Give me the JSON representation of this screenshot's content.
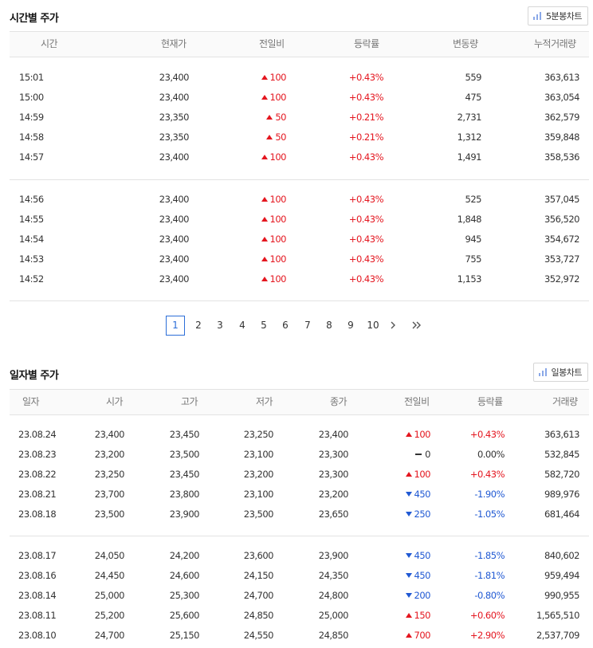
{
  "hourly": {
    "title": "시간별 주가",
    "chart_button": "5분봉차트",
    "headers": [
      "시간",
      "현재가",
      "전일비",
      "등락률",
      "변동량",
      "누적거래량"
    ],
    "group1": [
      {
        "time": "15:01",
        "price": "23,400",
        "diff": "100",
        "dir": "up",
        "rate": "+0.43%",
        "vol": "559",
        "cum": "363,613"
      },
      {
        "time": "15:00",
        "price": "23,400",
        "diff": "100",
        "dir": "up",
        "rate": "+0.43%",
        "vol": "475",
        "cum": "363,054"
      },
      {
        "time": "14:59",
        "price": "23,350",
        "diff": "50",
        "dir": "up",
        "rate": "+0.21%",
        "vol": "2,731",
        "cum": "362,579"
      },
      {
        "time": "14:58",
        "price": "23,350",
        "diff": "50",
        "dir": "up",
        "rate": "+0.21%",
        "vol": "1,312",
        "cum": "359,848"
      },
      {
        "time": "14:57",
        "price": "23,400",
        "diff": "100",
        "dir": "up",
        "rate": "+0.43%",
        "vol": "1,491",
        "cum": "358,536"
      }
    ],
    "group2": [
      {
        "time": "14:56",
        "price": "23,400",
        "diff": "100",
        "dir": "up",
        "rate": "+0.43%",
        "vol": "525",
        "cum": "357,045"
      },
      {
        "time": "14:55",
        "price": "23,400",
        "diff": "100",
        "dir": "up",
        "rate": "+0.43%",
        "vol": "1,848",
        "cum": "356,520"
      },
      {
        "time": "14:54",
        "price": "23,400",
        "diff": "100",
        "dir": "up",
        "rate": "+0.43%",
        "vol": "945",
        "cum": "354,672"
      },
      {
        "time": "14:53",
        "price": "23,400",
        "diff": "100",
        "dir": "up",
        "rate": "+0.43%",
        "vol": "755",
        "cum": "353,727"
      },
      {
        "time": "14:52",
        "price": "23,400",
        "diff": "100",
        "dir": "up",
        "rate": "+0.43%",
        "vol": "1,153",
        "cum": "352,972"
      }
    ]
  },
  "pagination": {
    "pages": [
      "1",
      "2",
      "3",
      "4",
      "5",
      "6",
      "7",
      "8",
      "9",
      "10"
    ],
    "current": "1"
  },
  "daily": {
    "title": "일자별 주가",
    "chart_button": "일봉차트",
    "headers": [
      "일자",
      "시가",
      "고가",
      "저가",
      "종가",
      "전일비",
      "등락률",
      "거래량"
    ],
    "group1": [
      {
        "date": "23.08.24",
        "open": "23,400",
        "high": "23,450",
        "low": "23,250",
        "close": "23,400",
        "diff": "100",
        "dir": "up",
        "rate": "+0.43%",
        "vol": "363,613"
      },
      {
        "date": "23.08.23",
        "open": "23,200",
        "high": "23,500",
        "low": "23,100",
        "close": "23,300",
        "diff": "0",
        "dir": "flat",
        "rate": "0.00%",
        "vol": "532,845"
      },
      {
        "date": "23.08.22",
        "open": "23,250",
        "high": "23,450",
        "low": "23,200",
        "close": "23,300",
        "diff": "100",
        "dir": "up",
        "rate": "+0.43%",
        "vol": "582,720"
      },
      {
        "date": "23.08.21",
        "open": "23,700",
        "high": "23,800",
        "low": "23,100",
        "close": "23,200",
        "diff": "450",
        "dir": "down",
        "rate": "-1.90%",
        "vol": "989,976"
      },
      {
        "date": "23.08.18",
        "open": "23,500",
        "high": "23,900",
        "low": "23,500",
        "close": "23,650",
        "diff": "250",
        "dir": "down",
        "rate": "-1.05%",
        "vol": "681,464"
      }
    ],
    "group2": [
      {
        "date": "23.08.17",
        "open": "24,050",
        "high": "24,200",
        "low": "23,600",
        "close": "23,900",
        "diff": "450",
        "dir": "down",
        "rate": "-1.85%",
        "vol": "840,602"
      },
      {
        "date": "23.08.16",
        "open": "24,450",
        "high": "24,600",
        "low": "24,150",
        "close": "24,350",
        "diff": "450",
        "dir": "down",
        "rate": "-1.81%",
        "vol": "959,494"
      },
      {
        "date": "23.08.14",
        "open": "25,000",
        "high": "25,300",
        "low": "24,700",
        "close": "24,800",
        "diff": "200",
        "dir": "down",
        "rate": "-0.80%",
        "vol": "990,955"
      },
      {
        "date": "23.08.11",
        "open": "25,200",
        "high": "25,600",
        "low": "24,850",
        "close": "25,000",
        "diff": "150",
        "dir": "up",
        "rate": "+0.60%",
        "vol": "1,565,510"
      },
      {
        "date": "23.08.10",
        "open": "24,700",
        "high": "25,150",
        "low": "24,550",
        "close": "24,850",
        "diff": "700",
        "dir": "up",
        "rate": "+2.90%",
        "vol": "2,537,709"
      }
    ]
  },
  "colors": {
    "up": "#e4161f",
    "down": "#2059d3",
    "accent": "#2c6ed8"
  },
  "icons": {
    "chart_button": "bar-chart-icon",
    "next": "chevron-right-icon",
    "last": "double-chevron-right-icon"
  }
}
